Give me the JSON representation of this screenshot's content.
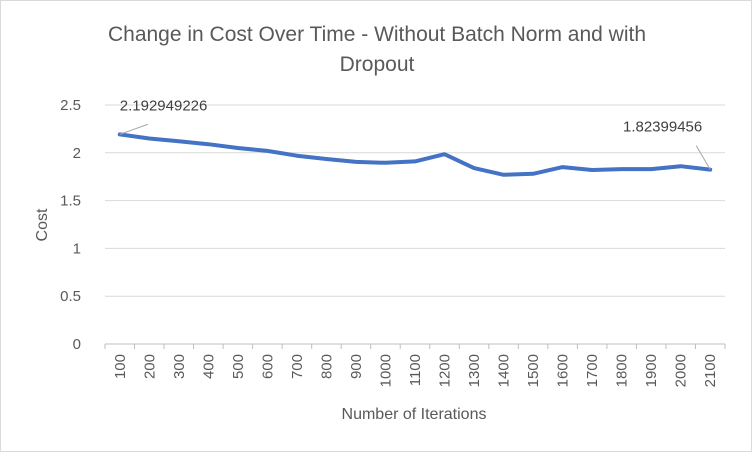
{
  "chart_data": {
    "type": "line",
    "title_line1": "Change in Cost Over Time - Without Batch Norm and with",
    "title_line2": "Dropout",
    "xlabel": "Number of Iterations",
    "ylabel": "Cost",
    "ylim": [
      0,
      2.5
    ],
    "yticks": [
      "0",
      "0.5",
      "1",
      "1.5",
      "2",
      "2.5"
    ],
    "grid": true,
    "legend": "none",
    "line_color": "#4472c4",
    "categories": [
      "100",
      "200",
      "300",
      "400",
      "500",
      "600",
      "700",
      "800",
      "900",
      "1000",
      "1100",
      "1200",
      "1300",
      "1400",
      "1500",
      "1600",
      "1700",
      "1800",
      "1900",
      "2000",
      "2100"
    ],
    "series": [
      {
        "values": [
          2.192949226,
          2.15,
          2.12,
          2.09,
          2.05,
          2.02,
          1.97,
          1.935,
          1.905,
          1.895,
          1.91,
          1.985,
          1.84,
          1.77,
          1.78,
          1.85,
          1.82,
          1.83,
          1.83,
          1.86,
          1.82399456
        ]
      }
    ],
    "data_labels": [
      {
        "index": 0,
        "text": "2.192949226"
      },
      {
        "index": 20,
        "text": "1.82399456"
      }
    ]
  }
}
